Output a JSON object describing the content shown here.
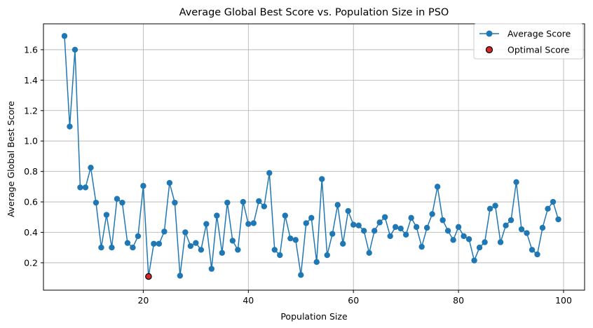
{
  "chart_data": {
    "type": "line",
    "title": "Average Global Best Score vs. Population Size in PSO",
    "xlabel": "Population Size",
    "ylabel": "Average Global Best Score",
    "xlim": [
      1,
      104
    ],
    "ylim": [
      0.02,
      1.77
    ],
    "xticks": [
      20,
      40,
      60,
      80,
      100
    ],
    "yticks": [
      0.2,
      0.4,
      0.6,
      0.8,
      1.0,
      1.2,
      1.4,
      1.6
    ],
    "xtick_labels": [
      "20",
      "40",
      "60",
      "80",
      "100"
    ],
    "ytick_labels": [
      "0.2",
      "0.4",
      "0.6",
      "0.8",
      "1.0",
      "1.2",
      "1.4",
      "1.6"
    ],
    "grid": true,
    "legend_position": "top-right",
    "series": [
      {
        "name": "Average Score",
        "color": "#1f77b4",
        "marker": "circle",
        "x": [
          5,
          6,
          7,
          8,
          9,
          10,
          11,
          12,
          13,
          14,
          15,
          16,
          17,
          18,
          19,
          20,
          21,
          22,
          23,
          24,
          25,
          26,
          27,
          28,
          29,
          30,
          31,
          32,
          33,
          34,
          35,
          36,
          37,
          38,
          39,
          40,
          41,
          42,
          43,
          44,
          45,
          46,
          47,
          48,
          49,
          50,
          51,
          52,
          53,
          54,
          55,
          56,
          57,
          58,
          59,
          60,
          61,
          62,
          63,
          64,
          65,
          66,
          67,
          68,
          69,
          70,
          71,
          72,
          73,
          74,
          75,
          76,
          77,
          78,
          79,
          80,
          81,
          82,
          83,
          84,
          85,
          86,
          87,
          88,
          89,
          90,
          91,
          92,
          93,
          94,
          95,
          96,
          97,
          98,
          99
        ],
        "y": [
          1.69,
          1.095,
          1.6,
          0.695,
          0.695,
          0.825,
          0.595,
          0.3,
          0.515,
          0.3,
          0.62,
          0.595,
          0.33,
          0.3,
          0.375,
          0.705,
          0.11,
          0.325,
          0.325,
          0.405,
          0.725,
          0.595,
          0.115,
          0.4,
          0.31,
          0.33,
          0.285,
          0.455,
          0.16,
          0.51,
          0.265,
          0.595,
          0.345,
          0.285,
          0.6,
          0.455,
          0.46,
          0.605,
          0.57,
          0.79,
          0.285,
          0.25,
          0.51,
          0.36,
          0.35,
          0.12,
          0.46,
          0.495,
          0.205,
          0.75,
          0.25,
          0.39,
          0.58,
          0.325,
          0.54,
          0.45,
          0.445,
          0.41,
          0.265,
          0.41,
          0.465,
          0.5,
          0.375,
          0.435,
          0.425,
          0.385,
          0.495,
          0.435,
          0.305,
          0.43,
          0.52,
          0.7,
          0.48,
          0.41,
          0.35,
          0.435,
          0.375,
          0.355,
          0.215,
          0.3,
          0.335,
          0.555,
          0.575,
          0.335,
          0.445,
          0.48,
          0.73,
          0.42,
          0.395,
          0.285,
          0.255,
          0.43,
          0.555,
          0.6,
          0.485
        ]
      },
      {
        "name": "Optimal Score",
        "color": "#d62728",
        "edgecolor": "#000000",
        "marker": "circle",
        "x": [
          21
        ],
        "y": [
          0.11
        ]
      }
    ]
  }
}
